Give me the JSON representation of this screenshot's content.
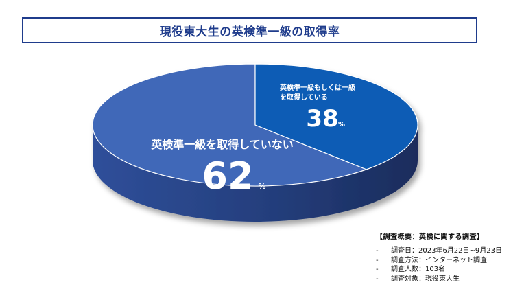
{
  "title": "現役東大生の英検準一級の取得率",
  "chart_data": {
    "type": "pie",
    "style": "3d",
    "slices": [
      {
        "label": "英検準一級を取得していない",
        "value": 62,
        "unit": "%",
        "color": "#4068b8"
      },
      {
        "label_line1": "英検準一級もしくは一級",
        "label_line2": "を取得している",
        "value": 38,
        "unit": "%",
        "color": "#0b5bb5"
      }
    ]
  },
  "survey": {
    "heading": "【調査概要：英検に関する調査】",
    "items": [
      {
        "dash": "-",
        "text": "調査日：2023年6月22日~9月23日"
      },
      {
        "dash": "-",
        "text": "調査方法：インターネット調査"
      },
      {
        "dash": "-",
        "text": "調査人数：103名"
      },
      {
        "dash": "-",
        "text": "調査対象：現役東大生"
      }
    ]
  }
}
